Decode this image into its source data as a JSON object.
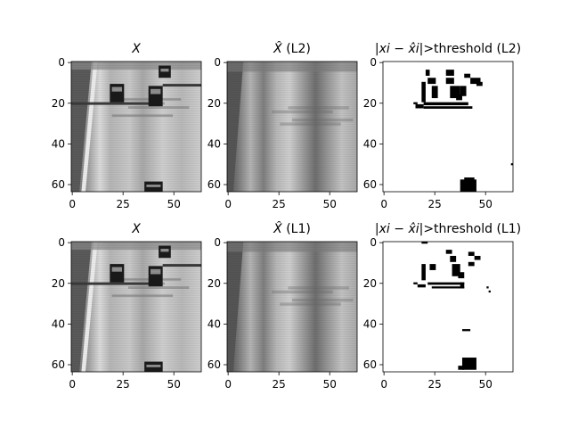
{
  "figure": {
    "panels": [
      {
        "id": "p1",
        "title_main": "X",
        "title_suffix": "",
        "kind": "original",
        "xticks": [
          "0",
          "25",
          "50"
        ],
        "yticks": [
          "0",
          "20",
          "40",
          "60"
        ]
      },
      {
        "id": "p2",
        "title_main": "X̂",
        "title_suffix": " (L2)",
        "kind": "recon",
        "xticks": [
          "0",
          "25",
          "50"
        ],
        "yticks": [
          "0",
          "20",
          "40",
          "60"
        ]
      },
      {
        "id": "p3",
        "title_main": "|xi − x̂i|",
        "title_suffix": ">threshold (L2)",
        "kind": "mask",
        "xticks": [
          "0",
          "25",
          "50"
        ],
        "yticks": [
          "0",
          "20",
          "40",
          "60"
        ]
      },
      {
        "id": "p4",
        "title_main": "X",
        "title_suffix": "",
        "kind": "original",
        "xticks": [
          "0",
          "25",
          "50"
        ],
        "yticks": [
          "0",
          "20",
          "40",
          "60"
        ]
      },
      {
        "id": "p5",
        "title_main": "X̂",
        "title_suffix": " (L1)",
        "kind": "recon",
        "xticks": [
          "0",
          "25",
          "50"
        ],
        "yticks": [
          "0",
          "20",
          "40",
          "60"
        ]
      },
      {
        "id": "p6",
        "title_main": "|xi − x̂i|",
        "title_suffix": ">threshold (L1)",
        "kind": "mask",
        "xticks": [
          "0",
          "25",
          "50"
        ],
        "yticks": [
          "0",
          "20",
          "40",
          "60"
        ]
      }
    ],
    "colors": {
      "background": "#ffffff",
      "road_light": "#c8c8c8",
      "road_dark": "#6a6a6a",
      "car": "#1a1a1a",
      "mask_on": "#000000"
    }
  }
}
